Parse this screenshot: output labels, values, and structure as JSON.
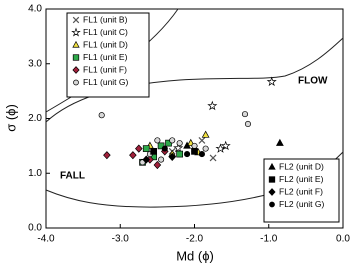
{
  "chart_data": {
    "type": "scatter",
    "x_label": "Md (ϕ)",
    "y_label": "σ (ϕ)",
    "annotations": [
      "FLOW",
      "FALL"
    ],
    "xlim": [
      -4,
      0
    ],
    "ylim": [
      0,
      4
    ],
    "xticks": [
      {
        "value": -4,
        "label": "-4.0"
      },
      {
        "value": -3,
        "label": "-3.0"
      },
      {
        "value": -2,
        "label": "-2.0"
      },
      {
        "value": -1,
        "label": "-1.0"
      },
      {
        "value": 0,
        "label": "0.0"
      }
    ],
    "yticks": [
      {
        "value": 0,
        "label": "0.0"
      },
      {
        "value": 1,
        "label": "1.0"
      },
      {
        "value": 2,
        "label": "2.0"
      },
      {
        "value": 3,
        "label": "3.0"
      },
      {
        "value": 4,
        "label": "4.0"
      }
    ],
    "series": [
      {
        "name": "FL1 (unit B)",
        "marker": "x",
        "color": "#555555",
        "legend": "upper left",
        "x": [
          -1.75,
          -2.0,
          -2.3,
          -1.9
        ],
        "values": [
          1.28,
          1.45,
          1.4,
          1.6
        ]
      },
      {
        "name": "FL1 (unit C)",
        "marker": "star",
        "color": "#ffffff",
        "legend": "upper left",
        "x": [
          -0.96,
          -1.76,
          -1.58,
          -2.22,
          -1.65
        ],
        "values": [
          2.67,
          2.23,
          1.5,
          1.46,
          1.45
        ]
      },
      {
        "name": "FL1 (unit D)",
        "marker": "triangle",
        "color": "#f0e040",
        "legend": "upper left",
        "x": [
          -1.85,
          -2.6,
          -2.3,
          -2.05,
          -1.95
        ],
        "values": [
          1.7,
          1.5,
          1.35,
          1.55,
          1.38
        ]
      },
      {
        "name": "FL1 (unit E)",
        "marker": "square",
        "color": "#2ea84a",
        "legend": "upper left",
        "x": [
          -2.65,
          -2.55,
          -2.45,
          -2.2,
          -2.7,
          -2.35
        ],
        "values": [
          1.45,
          1.3,
          1.5,
          1.35,
          1.2,
          1.55
        ]
      },
      {
        "name": "FL1 (unit F)",
        "marker": "diamond",
        "color": "#a0203a",
        "legend": "upper left",
        "x": [
          -3.18,
          -2.83,
          -2.6,
          -2.4,
          -2.75,
          -2.5
        ],
        "values": [
          1.33,
          1.33,
          1.25,
          1.4,
          1.45,
          1.15
        ]
      },
      {
        "name": "FL1 (unit G)",
        "marker": "circle",
        "color": "#d8d8d8",
        "legend": "upper left",
        "x": [
          -3.25,
          -1.32,
          -1.28,
          -2.7,
          -2.5,
          -2.2,
          -2.0,
          -1.85,
          -2.45,
          -2.6,
          -2.3
        ],
        "values": [
          2.06,
          2.08,
          1.9,
          1.2,
          1.6,
          1.55,
          1.5,
          1.45,
          1.25,
          1.35,
          1.6
        ]
      },
      {
        "name": "FL2 (unit D)",
        "marker": "triangle",
        "color": "#000000",
        "legend": "lower right",
        "x": [
          -0.85,
          -2.1
        ],
        "values": [
          1.55,
          1.5
        ]
      },
      {
        "name": "FL2 (unit E)",
        "marker": "square",
        "color": "#000000",
        "legend": "lower right",
        "x": [
          -2.0,
          -2.55
        ],
        "values": [
          1.4,
          1.4
        ]
      },
      {
        "name": "FL2 (unit F)",
        "marker": "diamond",
        "color": "#000000",
        "legend": "lower right",
        "x": [
          -2.3,
          -2.65
        ],
        "values": [
          1.3,
          1.25
        ]
      },
      {
        "name": "FL2 (unit G)",
        "marker": "circle",
        "color": "#000000",
        "legend": "lower right",
        "x": [
          -2.1,
          -2.4,
          -1.9
        ],
        "values": [
          1.35,
          1.45,
          1.35
        ]
      }
    ]
  }
}
